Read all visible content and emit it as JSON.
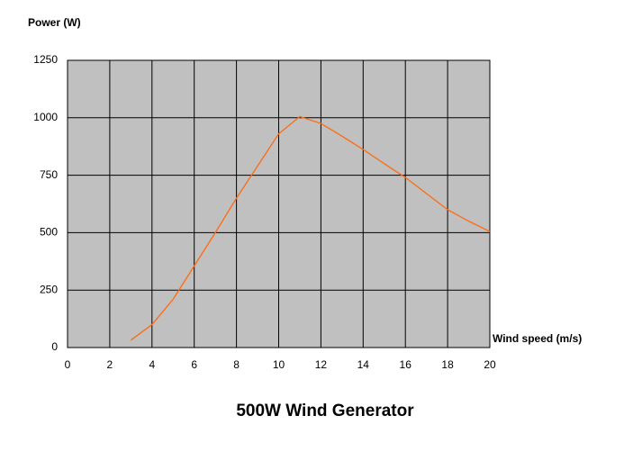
{
  "chart_data": {
    "type": "line",
    "title": "500W Wind Generator",
    "y_label": "Power (W)",
    "x_label": "Wind speed (m/s)",
    "x": [
      3,
      4,
      5,
      6,
      7,
      8,
      9,
      10,
      11,
      12,
      13,
      14,
      15,
      16,
      17,
      18,
      19,
      20
    ],
    "series": [
      {
        "name": "Power",
        "color": "#ff6a10",
        "values": [
          32,
          100,
          210,
          355,
          500,
          650,
          790,
          930,
          1005,
          975,
          920,
          862,
          800,
          740,
          670,
          600,
          550,
          505
        ]
      }
    ],
    "xlim": [
      0,
      20
    ],
    "xticks": [
      0,
      2,
      4,
      6,
      8,
      10,
      12,
      14,
      16,
      18,
      20
    ],
    "ylim": [
      0,
      1250
    ],
    "yticks": [
      0,
      250,
      500,
      750,
      1000,
      1250
    ],
    "grid": true,
    "plot_background": "#c0c0c0"
  }
}
